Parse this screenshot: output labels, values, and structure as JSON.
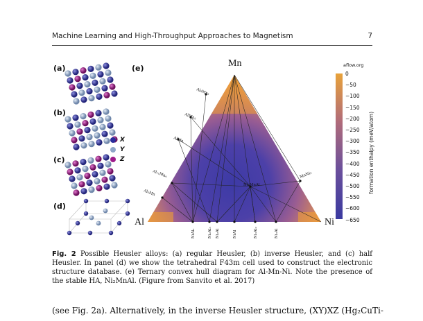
{
  "header": {
    "running_title": "Machine Learning and High-Throughput Approaches to Magnetism",
    "page_number": "7"
  },
  "figure": {
    "panel_labels": [
      "(a)",
      "(b)",
      "(c)",
      "(d)",
      "(e)"
    ],
    "site_legend": [
      {
        "label": "X",
        "color": "#2b2d9c"
      },
      {
        "label": "Y",
        "color": "#8fa6c8"
      },
      {
        "label": "Z",
        "color": "#9e1b8a"
      }
    ],
    "ternary": {
      "corners": {
        "top": "Mn",
        "left": "Al",
        "right": "Ni"
      },
      "left_edge_phases": [
        "Al₈Mn₅",
        "AlMn₂",
        "AlMn",
        "Al₁₁Mn₄",
        "Al₆Mn"
      ],
      "right_edge_phases": [
        "MnNi₃"
      ],
      "bottom_edge_phases": [
        "NiAl₃",
        "Ni₂Al₃",
        "Ni₂Al",
        "NiAl",
        "Ni₃Al₂",
        "Ni₃Al"
      ],
      "interior_phases": [
        "Ni₂MnAl"
      ]
    },
    "colorbar": {
      "source": "aflow.org",
      "axis_label": "formation enthalpy (meV/atom)",
      "ticks": [
        "0",
        "−50",
        "−100",
        "−150",
        "−200",
        "−250",
        "−300",
        "−350",
        "−400",
        "−450",
        "−500",
        "−550",
        "−600",
        "−650"
      ],
      "colors": {
        "high": "#e8a23a",
        "low": "#3a3aa0"
      }
    }
  },
  "caption": {
    "label": "Fig. 2",
    "text": "Possible Heusler alloys: (a) regular Heusler, (b) inverse Heusler, and (c) half Heusler. In panel (d) we show the tetrahedral F43m cell used to construct the electronic structure database. (e) Ternary convex hull diagram for Al-Mn-Ni. Note the presence of the stable HA, Ni₂MnAl. (Figure from Sanvito et al. 2017)"
  },
  "body_text": "(see Fig. 2a). Alternatively, in the inverse Heusler structure, (XY)XZ (Hg₂CuTi-"
}
